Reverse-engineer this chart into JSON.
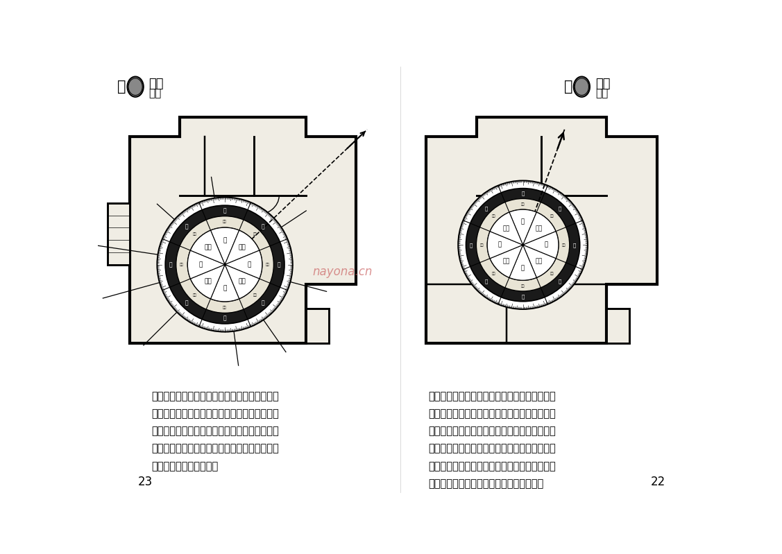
{
  "background_color": "#ffffff",
  "page_color": "#ffffff",
  "watermark": "nayona.cn",
  "page_num_left": "23",
  "page_num_right": "22",
  "text_left": "例二：在屋中心擺放「白鶴鳴全自動羅盤」，從\n盤面的顯示不但可看出房屋內各個方位的分布，\n更可利用盤面上的指示線，來測出某一特定物件\n的方位；例如本圖羅盤的紅線指向屋外電燈樁，\n便知道電燈樁在北方了。",
  "text_right": "例一：在屋內的中央位置擺放「白鶴鳴全自動羅\n盤」，便可以從盤面顯示看出房屋內各個方位分\n布情況。至於羅盤上的小紅線，它的作用是讓大\n家更易於測出某一特定位置的方向，方法是以紅\n線指向自己希望知道的目標方位，如本圖羅盤的\n指示線指向大門，便知道大門在西南方了。",
  "compass_directions_inner": [
    "北",
    "東北",
    "東",
    "東南",
    "南",
    "西南",
    "西",
    "西北"
  ],
  "compass_directions_outer": [
    "坎",
    "艮",
    "震",
    "巽",
    "離",
    "坤",
    "兌",
    "乾"
  ],
  "logo_text_left": [
    "自",
    "改運",
    "上冊"
  ],
  "logo_text_right": [
    "自",
    "改運",
    "上冊"
  ]
}
